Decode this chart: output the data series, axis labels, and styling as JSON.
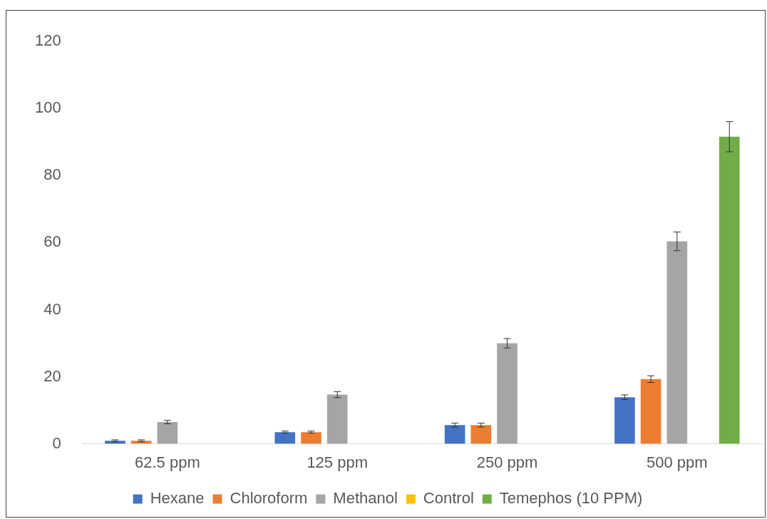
{
  "chart_data": {
    "type": "bar",
    "categories": [
      "62.5 ppm",
      "125 ppm",
      "250 ppm",
      "500 ppm"
    ],
    "series": [
      {
        "name": "Hexane",
        "color": "#4472c4",
        "values": [
          0.9,
          3.5,
          5.6,
          13.9
        ],
        "errors": [
          0.3,
          0.3,
          0.6,
          0.7
        ]
      },
      {
        "name": "Chloroform",
        "color": "#ed7d31",
        "values": [
          0.9,
          3.5,
          5.6,
          19.3
        ],
        "errors": [
          0.3,
          0.3,
          0.6,
          1
        ]
      },
      {
        "name": "Methanol",
        "color": "#a5a5a5",
        "values": [
          6.5,
          14.7,
          30,
          60.4
        ],
        "errors": [
          0.5,
          0.9,
          1.4,
          2.8
        ]
      },
      {
        "name": "Control",
        "color": "#ffc000",
        "values": [
          0,
          0,
          0,
          0
        ]
      },
      {
        "name": "Temephos (10 PPM)",
        "color": "#70ad47",
        "values": [
          null,
          null,
          null,
          91.6
        ],
        "errors": [
          null,
          null,
          null,
          4.5
        ]
      }
    ],
    "ylim": [
      0,
      120
    ],
    "yticks": [
      0,
      20,
      40,
      60,
      80,
      100,
      120
    ],
    "grid": false,
    "legend": "bottom"
  }
}
